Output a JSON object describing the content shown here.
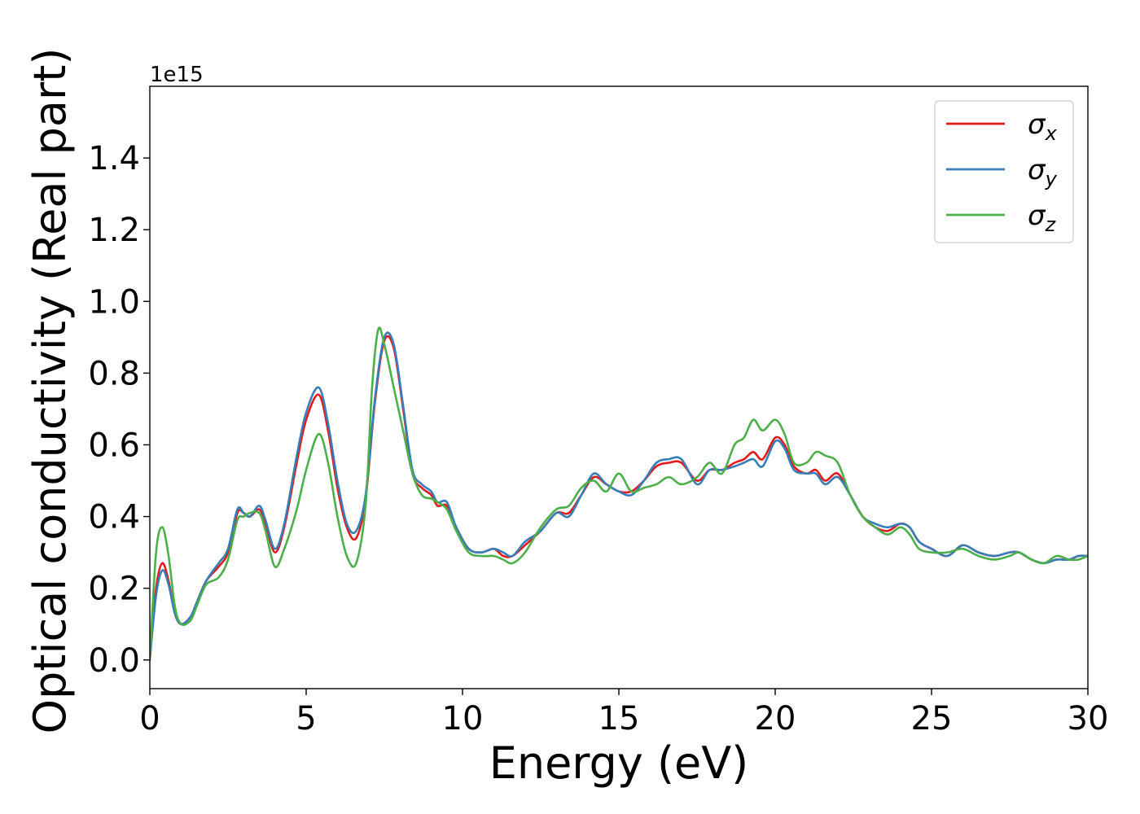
{
  "chart_data": {
    "type": "line",
    "xlabel": "Energy (eV)",
    "ylabel": "Optical conductivity (Real part)",
    "y_offset_label": "1e15",
    "xlim": [
      0,
      30
    ],
    "ylim": [
      -0.08,
      1.6
    ],
    "x_ticks": [
      0,
      5,
      10,
      15,
      20,
      25,
      30
    ],
    "x_tick_labels": [
      "0",
      "5",
      "10",
      "15",
      "20",
      "25",
      "30"
    ],
    "y_ticks": [
      0.0,
      0.2,
      0.4,
      0.6,
      0.8,
      1.0,
      1.2,
      1.4
    ],
    "y_tick_labels": [
      "0.0",
      "0.2",
      "0.4",
      "0.6",
      "0.8",
      "1.0",
      "1.2",
      "1.4"
    ],
    "grid": false,
    "legend_position": "top-right",
    "series": [
      {
        "name": "σx",
        "symbol": "σ",
        "subscript": "x",
        "color": "#e41a1c",
        "points": [
          [
            0,
            0.0
          ],
          [
            0.2,
            0.2
          ],
          [
            0.4,
            0.27
          ],
          [
            0.6,
            0.22
          ],
          [
            0.8,
            0.13
          ],
          [
            1.0,
            0.1
          ],
          [
            1.3,
            0.12
          ],
          [
            1.5,
            0.16
          ],
          [
            1.8,
            0.22
          ],
          [
            2.2,
            0.26
          ],
          [
            2.5,
            0.3
          ],
          [
            2.8,
            0.41
          ],
          [
            3.0,
            0.41
          ],
          [
            3.2,
            0.4
          ],
          [
            3.5,
            0.42
          ],
          [
            3.7,
            0.38
          ],
          [
            4.0,
            0.3
          ],
          [
            4.3,
            0.37
          ],
          [
            4.7,
            0.55
          ],
          [
            5.0,
            0.67
          ],
          [
            5.4,
            0.74
          ],
          [
            5.7,
            0.64
          ],
          [
            6.0,
            0.48
          ],
          [
            6.3,
            0.37
          ],
          [
            6.6,
            0.34
          ],
          [
            6.9,
            0.45
          ],
          [
            7.2,
            0.72
          ],
          [
            7.5,
            0.89
          ],
          [
            7.8,
            0.87
          ],
          [
            8.1,
            0.7
          ],
          [
            8.4,
            0.52
          ],
          [
            8.7,
            0.48
          ],
          [
            9.0,
            0.46
          ],
          [
            9.2,
            0.43
          ],
          [
            9.5,
            0.43
          ],
          [
            9.8,
            0.37
          ],
          [
            10.2,
            0.31
          ],
          [
            10.6,
            0.3
          ],
          [
            11.0,
            0.31
          ],
          [
            11.3,
            0.29
          ],
          [
            11.6,
            0.29
          ],
          [
            12.0,
            0.32
          ],
          [
            12.5,
            0.36
          ],
          [
            13.0,
            0.41
          ],
          [
            13.4,
            0.41
          ],
          [
            13.8,
            0.46
          ],
          [
            14.2,
            0.51
          ],
          [
            14.6,
            0.49
          ],
          [
            15.0,
            0.47
          ],
          [
            15.4,
            0.47
          ],
          [
            15.8,
            0.5
          ],
          [
            16.2,
            0.54
          ],
          [
            16.6,
            0.55
          ],
          [
            17.0,
            0.55
          ],
          [
            17.5,
            0.5
          ],
          [
            17.9,
            0.53
          ],
          [
            18.3,
            0.53
          ],
          [
            18.7,
            0.55
          ],
          [
            19.0,
            0.56
          ],
          [
            19.3,
            0.58
          ],
          [
            19.6,
            0.56
          ],
          [
            20.0,
            0.62
          ],
          [
            20.3,
            0.6
          ],
          [
            20.6,
            0.54
          ],
          [
            21.0,
            0.52
          ],
          [
            21.3,
            0.53
          ],
          [
            21.6,
            0.5
          ],
          [
            22.0,
            0.52
          ],
          [
            22.4,
            0.46
          ],
          [
            22.8,
            0.4
          ],
          [
            23.2,
            0.37
          ],
          [
            23.6,
            0.36
          ],
          [
            24.0,
            0.38
          ],
          [
            24.3,
            0.37
          ],
          [
            24.6,
            0.33
          ],
          [
            25.0,
            0.31
          ],
          [
            25.5,
            0.29
          ],
          [
            26.0,
            0.32
          ],
          [
            26.5,
            0.3
          ],
          [
            27.0,
            0.29
          ],
          [
            27.5,
            0.3
          ],
          [
            27.8,
            0.3
          ],
          [
            28.2,
            0.28
          ],
          [
            28.6,
            0.27
          ],
          [
            29.0,
            0.28
          ],
          [
            29.4,
            0.28
          ],
          [
            29.7,
            0.29
          ],
          [
            30.0,
            0.29
          ]
        ]
      },
      {
        "name": "σy",
        "symbol": "σ",
        "subscript": "y",
        "color": "#377eb8",
        "points": [
          [
            0,
            0.0
          ],
          [
            0.2,
            0.18
          ],
          [
            0.4,
            0.25
          ],
          [
            0.6,
            0.21
          ],
          [
            0.8,
            0.13
          ],
          [
            1.0,
            0.1
          ],
          [
            1.3,
            0.12
          ],
          [
            1.5,
            0.16
          ],
          [
            1.8,
            0.22
          ],
          [
            2.2,
            0.27
          ],
          [
            2.5,
            0.31
          ],
          [
            2.8,
            0.42
          ],
          [
            3.0,
            0.41
          ],
          [
            3.2,
            0.4
          ],
          [
            3.5,
            0.43
          ],
          [
            3.7,
            0.39
          ],
          [
            4.0,
            0.31
          ],
          [
            4.3,
            0.38
          ],
          [
            4.7,
            0.57
          ],
          [
            5.0,
            0.69
          ],
          [
            5.4,
            0.76
          ],
          [
            5.7,
            0.66
          ],
          [
            6.0,
            0.5
          ],
          [
            6.3,
            0.38
          ],
          [
            6.6,
            0.36
          ],
          [
            6.9,
            0.46
          ],
          [
            7.2,
            0.73
          ],
          [
            7.5,
            0.9
          ],
          [
            7.8,
            0.88
          ],
          [
            8.1,
            0.71
          ],
          [
            8.4,
            0.53
          ],
          [
            8.7,
            0.49
          ],
          [
            9.0,
            0.47
          ],
          [
            9.2,
            0.44
          ],
          [
            9.5,
            0.44
          ],
          [
            9.8,
            0.37
          ],
          [
            10.2,
            0.31
          ],
          [
            10.6,
            0.3
          ],
          [
            11.0,
            0.31
          ],
          [
            11.3,
            0.3
          ],
          [
            11.6,
            0.29
          ],
          [
            12.0,
            0.33
          ],
          [
            12.5,
            0.36
          ],
          [
            13.0,
            0.41
          ],
          [
            13.4,
            0.4
          ],
          [
            13.8,
            0.46
          ],
          [
            14.2,
            0.52
          ],
          [
            14.6,
            0.49
          ],
          [
            15.0,
            0.47
          ],
          [
            15.4,
            0.46
          ],
          [
            15.8,
            0.5
          ],
          [
            16.2,
            0.55
          ],
          [
            16.6,
            0.56
          ],
          [
            17.0,
            0.56
          ],
          [
            17.5,
            0.49
          ],
          [
            17.9,
            0.53
          ],
          [
            18.3,
            0.53
          ],
          [
            18.7,
            0.54
          ],
          [
            19.0,
            0.55
          ],
          [
            19.3,
            0.56
          ],
          [
            19.6,
            0.54
          ],
          [
            20.0,
            0.61
          ],
          [
            20.3,
            0.59
          ],
          [
            20.6,
            0.53
          ],
          [
            21.0,
            0.52
          ],
          [
            21.3,
            0.52
          ],
          [
            21.6,
            0.49
          ],
          [
            22.0,
            0.51
          ],
          [
            22.4,
            0.46
          ],
          [
            22.8,
            0.4
          ],
          [
            23.2,
            0.38
          ],
          [
            23.6,
            0.37
          ],
          [
            24.0,
            0.38
          ],
          [
            24.3,
            0.37
          ],
          [
            24.6,
            0.33
          ],
          [
            25.0,
            0.31
          ],
          [
            25.5,
            0.29
          ],
          [
            26.0,
            0.32
          ],
          [
            26.5,
            0.3
          ],
          [
            27.0,
            0.29
          ],
          [
            27.5,
            0.3
          ],
          [
            27.8,
            0.3
          ],
          [
            28.2,
            0.28
          ],
          [
            28.6,
            0.27
          ],
          [
            29.0,
            0.28
          ],
          [
            29.4,
            0.28
          ],
          [
            29.7,
            0.29
          ],
          [
            30.0,
            0.29
          ]
        ]
      },
      {
        "name": "σz",
        "symbol": "σ",
        "subscript": "z",
        "color": "#4daf4a",
        "points": [
          [
            0,
            0.0
          ],
          [
            0.2,
            0.3
          ],
          [
            0.4,
            0.37
          ],
          [
            0.6,
            0.29
          ],
          [
            0.8,
            0.15
          ],
          [
            1.0,
            0.1
          ],
          [
            1.3,
            0.11
          ],
          [
            1.5,
            0.15
          ],
          [
            1.8,
            0.21
          ],
          [
            2.2,
            0.23
          ],
          [
            2.5,
            0.28
          ],
          [
            2.8,
            0.39
          ],
          [
            3.0,
            0.4
          ],
          [
            3.2,
            0.41
          ],
          [
            3.5,
            0.41
          ],
          [
            3.7,
            0.36
          ],
          [
            4.0,
            0.26
          ],
          [
            4.3,
            0.31
          ],
          [
            4.7,
            0.42
          ],
          [
            5.0,
            0.53
          ],
          [
            5.4,
            0.63
          ],
          [
            5.7,
            0.55
          ],
          [
            6.0,
            0.4
          ],
          [
            6.3,
            0.29
          ],
          [
            6.6,
            0.27
          ],
          [
            6.9,
            0.43
          ],
          [
            7.1,
            0.75
          ],
          [
            7.3,
            0.92
          ],
          [
            7.5,
            0.88
          ],
          [
            7.8,
            0.76
          ],
          [
            8.1,
            0.64
          ],
          [
            8.4,
            0.52
          ],
          [
            8.7,
            0.46
          ],
          [
            9.0,
            0.45
          ],
          [
            9.2,
            0.44
          ],
          [
            9.5,
            0.42
          ],
          [
            9.8,
            0.36
          ],
          [
            10.2,
            0.3
          ],
          [
            10.6,
            0.29
          ],
          [
            11.0,
            0.29
          ],
          [
            11.3,
            0.28
          ],
          [
            11.6,
            0.27
          ],
          [
            12.0,
            0.3
          ],
          [
            12.5,
            0.37
          ],
          [
            13.0,
            0.42
          ],
          [
            13.4,
            0.43
          ],
          [
            13.8,
            0.48
          ],
          [
            14.2,
            0.5
          ],
          [
            14.6,
            0.47
          ],
          [
            15.0,
            0.52
          ],
          [
            15.4,
            0.47
          ],
          [
            15.8,
            0.48
          ],
          [
            16.2,
            0.49
          ],
          [
            16.6,
            0.51
          ],
          [
            17.0,
            0.49
          ],
          [
            17.5,
            0.51
          ],
          [
            17.9,
            0.55
          ],
          [
            18.3,
            0.52
          ],
          [
            18.7,
            0.6
          ],
          [
            19.0,
            0.62
          ],
          [
            19.3,
            0.67
          ],
          [
            19.6,
            0.64
          ],
          [
            20.0,
            0.67
          ],
          [
            20.3,
            0.63
          ],
          [
            20.6,
            0.55
          ],
          [
            21.0,
            0.55
          ],
          [
            21.3,
            0.58
          ],
          [
            21.6,
            0.57
          ],
          [
            22.0,
            0.55
          ],
          [
            22.4,
            0.46
          ],
          [
            22.8,
            0.4
          ],
          [
            23.2,
            0.37
          ],
          [
            23.6,
            0.35
          ],
          [
            24.0,
            0.37
          ],
          [
            24.3,
            0.35
          ],
          [
            24.6,
            0.31
          ],
          [
            25.0,
            0.3
          ],
          [
            25.5,
            0.3
          ],
          [
            26.0,
            0.31
          ],
          [
            26.5,
            0.29
          ],
          [
            27.0,
            0.28
          ],
          [
            27.5,
            0.29
          ],
          [
            27.8,
            0.3
          ],
          [
            28.2,
            0.28
          ],
          [
            28.6,
            0.27
          ],
          [
            29.0,
            0.29
          ],
          [
            29.4,
            0.28
          ],
          [
            29.7,
            0.28
          ],
          [
            30.0,
            0.29
          ]
        ]
      }
    ]
  }
}
